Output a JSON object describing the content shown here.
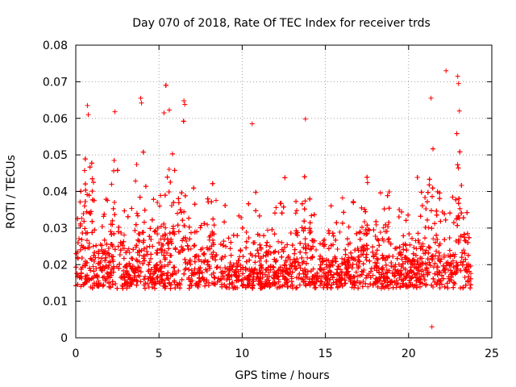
{
  "chart_data": {
    "type": "scatter",
    "title": "Day 070 of 2018, Rate Of TEC Index for receiver trds",
    "xlabel": "GPS time / hours",
    "ylabel": "ROTI / TECUs",
    "xlim": [
      0,
      25
    ],
    "ylim": [
      0,
      0.08
    ],
    "xticks": [
      0,
      5,
      10,
      15,
      20,
      25
    ],
    "xtick_labels": [
      "0",
      "5",
      "10",
      "15",
      "20",
      "25"
    ],
    "yticks": [
      0,
      0.01,
      0.02,
      0.03,
      0.04,
      0.05,
      0.06,
      0.07,
      0.08
    ],
    "ytick_labels": [
      "0",
      "0.01",
      "0.02",
      "0.03",
      "0.04",
      "0.05",
      "0.06",
      "0.07",
      "0.08"
    ],
    "grid": true,
    "marker": "+",
    "marker_color": "#ff0000",
    "data_range": {
      "x": [
        0,
        23.75
      ],
      "y": [
        0.003,
        0.073
      ]
    },
    "typical_band": [
      0.01,
      0.03
    ],
    "series": [
      {
        "name": "ROTI",
        "notable_points": [
          {
            "x": 0.7,
            "y": 0.0635
          },
          {
            "x": 0.75,
            "y": 0.061
          },
          {
            "x": 2.35,
            "y": 0.0618
          },
          {
            "x": 3.9,
            "y": 0.0655
          },
          {
            "x": 3.95,
            "y": 0.0642
          },
          {
            "x": 5.3,
            "y": 0.0615
          },
          {
            "x": 6.5,
            "y": 0.0648
          },
          {
            "x": 6.55,
            "y": 0.0638
          },
          {
            "x": 10.6,
            "y": 0.0585
          },
          {
            "x": 13.8,
            "y": 0.0598
          },
          {
            "x": 21.35,
            "y": 0.0655
          },
          {
            "x": 22.25,
            "y": 0.073
          },
          {
            "x": 22.95,
            "y": 0.0715
          },
          {
            "x": 23.0,
            "y": 0.0695
          },
          {
            "x": 23.05,
            "y": 0.062
          },
          {
            "x": 21.4,
            "y": 0.003
          }
        ]
      }
    ]
  }
}
